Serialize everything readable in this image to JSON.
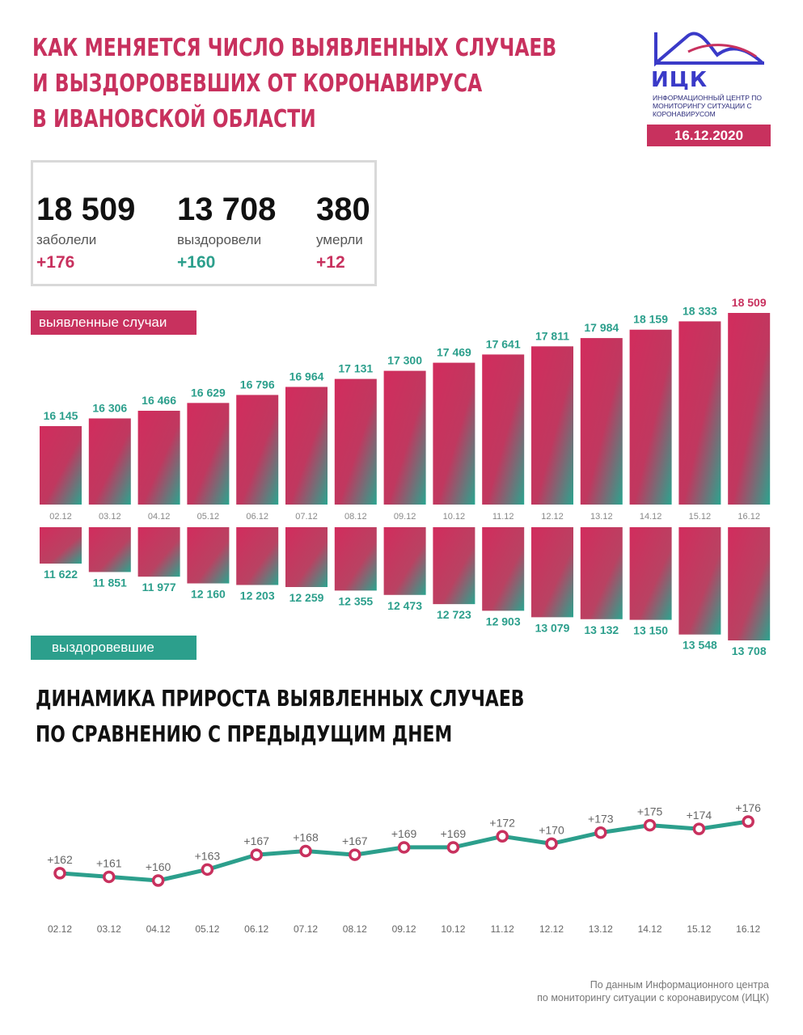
{
  "header": {
    "title_lines": [
      "КАК МЕНЯЕТСЯ ЧИСЛО ВЫЯВЛЕННЫХ СЛУЧАЕВ",
      "И ВЫЗДОРОВЕВШИХ ОТ КОРОНАВИРУСА",
      "В ИВАНОВСКОЙ ОБЛАСТИ"
    ],
    "logo_name": "ИЦК",
    "logo_sub": "ИНФОРМАЦИОННЫЙ ЦЕНТР ПО МОНИТОРИНГУ СИТУАЦИИ С КОРОНАВИРУСОМ",
    "date": "16.12.2020"
  },
  "stats": [
    {
      "value": "18 509",
      "label": "заболели",
      "delta": "+176"
    },
    {
      "value": "13 708",
      "label": "выздоровели",
      "delta": "+160"
    },
    {
      "value": "380",
      "label": "умерли",
      "delta": "+12"
    }
  ],
  "labels": {
    "cases_badge": "выявленные случаи",
    "recovered_badge": "выздоровевшие",
    "subtitle_lines": [
      "ДИНАМИКА ПРИРОСТА ВЫЯВЛЕННЫХ СЛУЧАЕВ",
      "ПО СРАВНЕНИЮ С ПРЕДЫДУЩИМ ДНЕМ"
    ],
    "footer_lines": [
      "По данным Информационного центра",
      "по мониторингу ситуации с коронавирусом (ИЦК)"
    ]
  },
  "colors": {
    "accent_red": "#c8315e",
    "accent_teal": "#2c9f8c"
  },
  "chart_data": [
    {
      "type": "bar",
      "categories": [
        "02.12",
        "03.12",
        "04.12",
        "05.12",
        "06.12",
        "07.12",
        "08.12",
        "09.12",
        "10.12",
        "11.12",
        "12.12",
        "13.12",
        "14.12",
        "15.12",
        "16.12"
      ],
      "series": [
        {
          "name": "выявленные случаи",
          "values": [
            16145,
            16306,
            16466,
            16629,
            16796,
            16964,
            17131,
            17300,
            17469,
            17641,
            17811,
            17984,
            18159,
            18333,
            18509
          ],
          "value_labels": [
            "16 145",
            "16 306",
            "16 466",
            "16 629",
            "16 796",
            "16 964",
            "17 131",
            "17 300",
            "17 469",
            "17 641",
            "17 811",
            "17 984",
            "18 159",
            "18 333",
            "18 509"
          ]
        },
        {
          "name": "выздоровевшие",
          "values": [
            11622,
            11851,
            11977,
            12160,
            12203,
            12259,
            12355,
            12473,
            12723,
            12903,
            13079,
            13132,
            13150,
            13548,
            13708
          ],
          "value_labels": [
            "11 622",
            "11 851",
            "11 977",
            "12 160",
            "12 203",
            "12 259",
            "12 355",
            "12 473",
            "12 723",
            "12 903",
            "13 079",
            "13 132",
            "13 150",
            "13 548",
            "13 708"
          ]
        }
      ]
    },
    {
      "type": "line",
      "x": [
        "02.12",
        "03.12",
        "04.12",
        "05.12",
        "06.12",
        "07.12",
        "08.12",
        "09.12",
        "10.12",
        "11.12",
        "12.12",
        "13.12",
        "14.12",
        "15.12",
        "16.12"
      ],
      "values": [
        162,
        161,
        160,
        163,
        167,
        168,
        167,
        169,
        169,
        172,
        170,
        173,
        175,
        174,
        176
      ],
      "value_labels": [
        "+162",
        "+161",
        "+160",
        "+163",
        "+167",
        "+168",
        "+167",
        "+169",
        "+169",
        "+172",
        "+170",
        "+173",
        "+175",
        "+174",
        "+176"
      ]
    }
  ]
}
